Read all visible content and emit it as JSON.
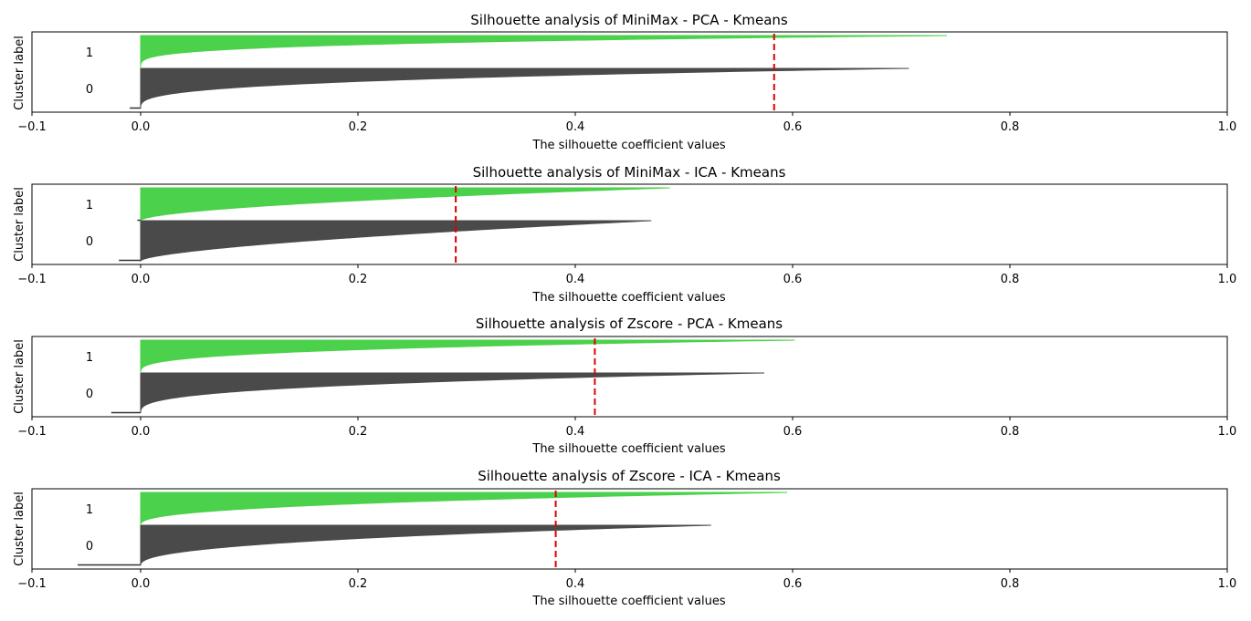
{
  "chart_data": [
    {
      "type": "area",
      "title": "Silhouette analysis of MiniMax - PCA - Kmeans",
      "xlabel": "The silhouette coefficient values",
      "ylabel": "Cluster label",
      "xlim": [
        -0.1,
        1.0
      ],
      "xticks": [
        "−0.1",
        "0.0",
        "0.2",
        "0.4",
        "0.6",
        "0.8",
        "1.0"
      ],
      "avg_score": 0.583,
      "clusters": [
        {
          "label": "0",
          "color": "#4a4a4a",
          "min": -0.01,
          "max": 0.707,
          "share": 0.55,
          "shape": 3.2
        },
        {
          "label": "1",
          "color": "#4bd14b",
          "min": 0.0,
          "max": 0.742,
          "share": 0.45,
          "shape": 4.0
        }
      ]
    },
    {
      "type": "area",
      "title": "Silhouette analysis of MiniMax - ICA - Kmeans",
      "xlabel": "The silhouette coefficient values",
      "ylabel": "Cluster label",
      "xlim": [
        -0.1,
        1.0
      ],
      "xticks": [
        "−0.1",
        "0.0",
        "0.2",
        "0.4",
        "0.6",
        "0.8",
        "1.0"
      ],
      "avg_score": 0.29,
      "clusters": [
        {
          "label": "0",
          "color": "#4a4a4a",
          "min": -0.02,
          "max": 0.47,
          "share": 0.55,
          "shape": 1.6
        },
        {
          "label": "1",
          "color": "#4bd14b",
          "min": -0.003,
          "max": 0.487,
          "share": 0.45,
          "shape": 1.8
        }
      ]
    },
    {
      "type": "area",
      "title": "Silhouette analysis of Zscore - PCA - Kmeans",
      "xlabel": "The silhouette coefficient values",
      "ylabel": "Cluster label",
      "xlim": [
        -0.1,
        1.0
      ],
      "xticks": [
        "−0.1",
        "0.0",
        "0.2",
        "0.4",
        "0.6",
        "0.8",
        "1.0"
      ],
      "avg_score": 0.418,
      "clusters": [
        {
          "label": "0",
          "color": "#4a4a4a",
          "min": -0.027,
          "max": 0.574,
          "share": 0.55,
          "shape": 3.0
        },
        {
          "label": "1",
          "color": "#4bd14b",
          "min": 0.0,
          "max": 0.602,
          "share": 0.45,
          "shape": 3.2
        }
      ]
    },
    {
      "type": "area",
      "title": "Silhouette analysis of Zscore - ICA - Kmeans",
      "xlabel": "The silhouette coefficient values",
      "ylabel": "Cluster label",
      "xlim": [
        -0.1,
        1.0
      ],
      "xticks": [
        "−0.1",
        "0.0",
        "0.2",
        "0.4",
        "0.6",
        "0.8",
        "1.0"
      ],
      "avg_score": 0.382,
      "clusters": [
        {
          "label": "0",
          "color": "#4a4a4a",
          "min": -0.058,
          "max": 0.525,
          "share": 0.55,
          "shape": 2.4
        },
        {
          "label": "1",
          "color": "#4bd14b",
          "min": 0.0,
          "max": 0.595,
          "share": 0.45,
          "shape": 2.6
        }
      ]
    }
  ],
  "colors": {
    "cluster_0": "#4a4a4a",
    "cluster_1": "#4bd14b",
    "average_line": "#e00000"
  }
}
